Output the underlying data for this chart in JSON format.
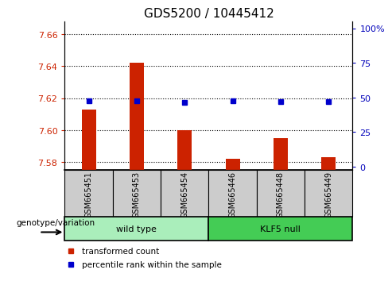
{
  "title": "GDS5200 / 10445412",
  "categories": [
    "GSM665451",
    "GSM665453",
    "GSM665454",
    "GSM665446",
    "GSM665448",
    "GSM665449"
  ],
  "transformed_count": [
    7.613,
    7.642,
    7.6,
    7.582,
    7.595,
    7.583
  ],
  "percentile_rank": [
    47.5,
    47.5,
    46.5,
    47.5,
    47.0,
    47.0
  ],
  "ylim_left": [
    7.575,
    7.668
  ],
  "ylim_right": [
    -2.5,
    105
  ],
  "yticks_left": [
    7.58,
    7.6,
    7.62,
    7.64,
    7.66
  ],
  "yticks_right": [
    0,
    25,
    50,
    75,
    100
  ],
  "ytick_labels_right": [
    "0",
    "25",
    "50",
    "75",
    "100%"
  ],
  "bar_color": "#cc2200",
  "dot_color": "#0000cc",
  "bar_bottom": 7.575,
  "left_tick_color": "#cc2200",
  "right_tick_color": "#0000bb",
  "wild_type_color": "#aaeebb",
  "klf5_null_color": "#44cc55",
  "xtick_bg_color": "#cccccc",
  "legend_red_label": "transformed count",
  "legend_blue_label": "percentile rank within the sample",
  "genotype_label": "genotype/variation",
  "n_wild": 3,
  "n_klf5": 3,
  "bar_width": 0.3
}
